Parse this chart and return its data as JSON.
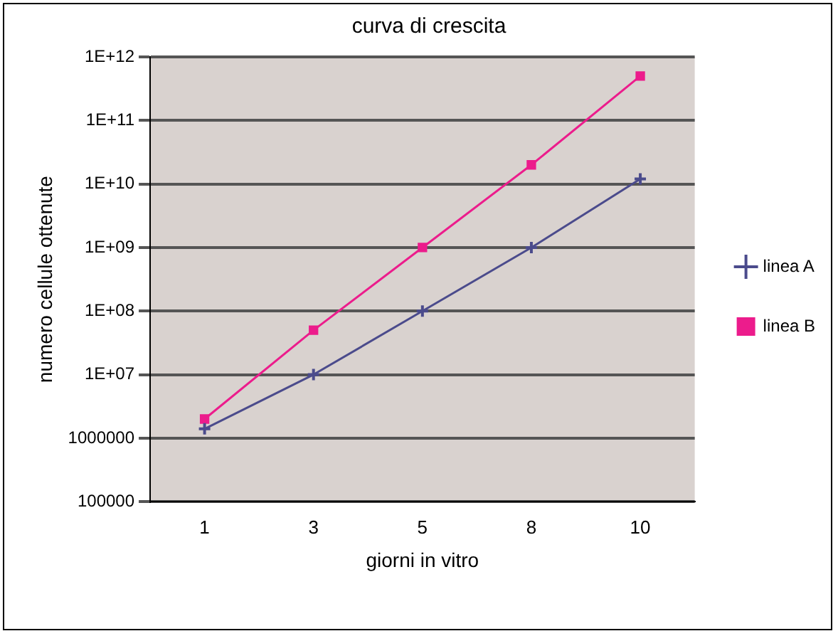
{
  "chart_data": {
    "type": "line",
    "title": "curva di crescita",
    "xlabel": "giorni in vitro",
    "ylabel": "numero cellule ottenute",
    "categories": [
      "1",
      "3",
      "5",
      "8",
      "10"
    ],
    "series": [
      {
        "name": "linea A",
        "color": "#4b4b8c",
        "marker": "cross",
        "values": [
          1400000,
          10000000,
          100000000,
          1000000000,
          12000000000
        ]
      },
      {
        "name": "linea B",
        "color": "#ec1c8c",
        "marker": "square",
        "values": [
          2000000,
          50000000,
          1000000000,
          20000000000,
          500000000000
        ]
      }
    ],
    "log": "y",
    "ylim": [
      100000,
      1000000000000
    ],
    "yticks": [
      100000,
      1000000,
      {
        "value": 10000000,
        "label": "1E+07"
      },
      {
        "value": 100000000,
        "label": "1E+08"
      },
      {
        "value": 1000000000,
        "label": "1E+09"
      },
      {
        "value": 10000000000,
        "label": "1E+10"
      },
      {
        "value": 100000000000,
        "label": "1E+11"
      },
      {
        "value": 1000000000000,
        "label": "1E+12"
      }
    ],
    "grid": "y",
    "legend": "right",
    "line_style": "solid"
  }
}
